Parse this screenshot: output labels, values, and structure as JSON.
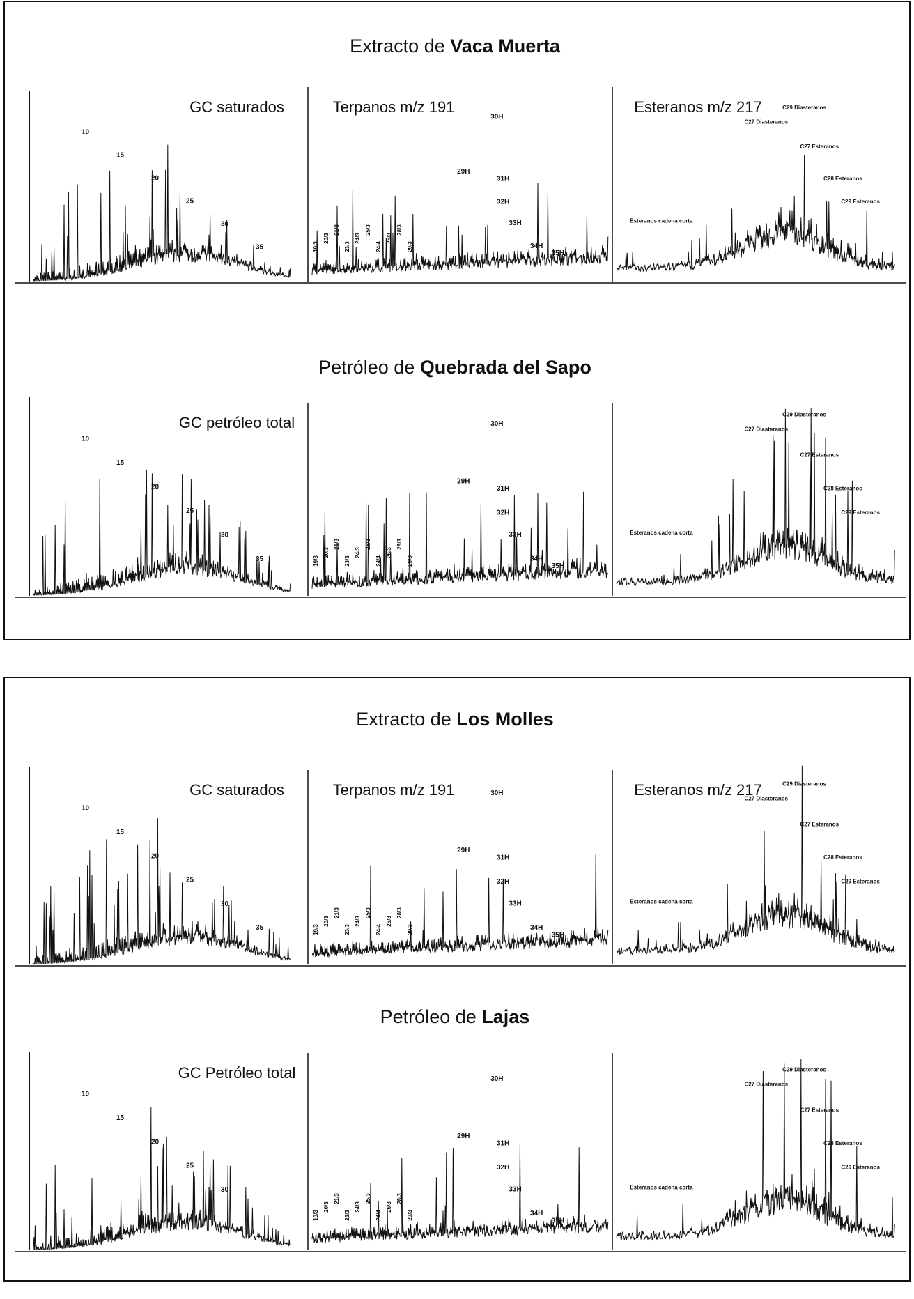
{
  "figures": [
    {
      "title_prefix": "Extracto de",
      "title_bold": "Vaca Muerta",
      "gc_label": "GC saturados",
      "terpane_label": "Terpanos m/z 191",
      "sterane_label": "Esteranos m/z 217",
      "gc_peaks": [
        "10",
        "15",
        "20",
        "25",
        "30",
        "35"
      ],
      "tricyclic_peaks": [
        "19/3",
        "20/3",
        "21/3",
        "23/3",
        "24/3",
        "25/3",
        "24/4",
        "26/3",
        "28/3",
        "29/3"
      ],
      "hopane_peaks": [
        "30H",
        "29H",
        "31H",
        "32H",
        "33H",
        "34H",
        "35H"
      ],
      "sterane_peaks": [
        "Esteranos cadena corta",
        "C27 Diasteranos",
        "C29 Diasteranos",
        "C27 Esteranos",
        "C28 Esteranos",
        "C29 Esteranos"
      ]
    },
    {
      "title_prefix": "Petróleo de",
      "title_bold": "Quebrada del Sapo",
      "gc_label": "GC petróleo total",
      "gc_peaks": [
        "10",
        "15",
        "20",
        "25",
        "30",
        "35"
      ],
      "tricyclic_peaks": [
        "19/3",
        "20/3",
        "21/3",
        "23/3",
        "24/3",
        "25/3",
        "24/4",
        "26/3",
        "28/3",
        "29/3"
      ],
      "hopane_peaks": [
        "30H",
        "29H",
        "31H",
        "32H",
        "33H",
        "34H",
        "35H"
      ],
      "sterane_peaks": [
        "Esteranos cadena corta",
        "C27 Diasteranos",
        "C29 Diasteranos",
        "C27 Esteranos",
        "C28 Esteranos",
        "C29 Esteranos"
      ]
    },
    {
      "title_prefix": "Extracto de",
      "title_bold": "Los Molles",
      "gc_label": "GC saturados",
      "terpane_label": "Terpanos m/z 191",
      "sterane_label": "Esteranos m/z 217",
      "gc_peaks": [
        "10",
        "15",
        "20",
        "25",
        "30",
        "35"
      ],
      "tricyclic_peaks": [
        "19/3",
        "20/3",
        "21/3",
        "23/3",
        "24/3",
        "25/3",
        "24/4",
        "26/3",
        "28/3",
        "29/3"
      ],
      "hopane_peaks": [
        "30H",
        "29H",
        "31H",
        "32H",
        "33H",
        "34H",
        "35H"
      ],
      "sterane_peaks": [
        "Esteranos cadena corta",
        "C27 Diasteranos",
        "C29 Diasteranos",
        "C27 Esteranos",
        "C28 Esteranos",
        "C29 Esteranos"
      ]
    },
    {
      "title_prefix": "Petróleo de",
      "title_bold": "Lajas",
      "gc_label": "GC Petróleo total",
      "gc_peaks": [
        "10",
        "15",
        "20",
        "25",
        "30"
      ],
      "tricyclic_peaks": [
        "19/3",
        "20/3",
        "21/3",
        "23/3",
        "24/3",
        "25/3",
        "24/4",
        "26/3",
        "28/3",
        "29/3"
      ],
      "hopane_peaks": [
        "30H",
        "29H",
        "31H",
        "32H",
        "33H",
        "34H",
        "35H"
      ],
      "sterane_peaks": [
        "Esteranos cadena corta",
        "C27 Diasteranos",
        "C29 Diasteranos",
        "C27 Esteranos",
        "C28 Esteranos",
        "C29 Esteranos"
      ]
    }
  ]
}
